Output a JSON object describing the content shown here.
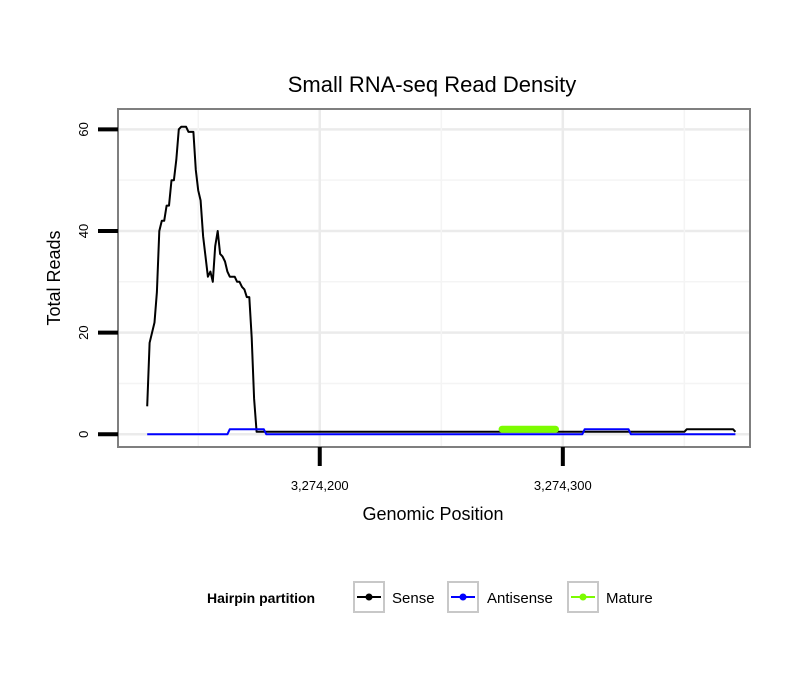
{
  "chart_data": {
    "type": "line",
    "title": "Small RNA-seq Read Density",
    "xlabel": "Genomic Position",
    "ylabel": "Total Reads",
    "xlim": [
      3274117,
      3274377
    ],
    "ylim": [
      -2.5,
      64
    ],
    "x_ticks": [
      {
        "value": 3274200,
        "label": "3,274,200"
      },
      {
        "value": 3274300,
        "label": "3,274,300"
      }
    ],
    "y_ticks": [
      {
        "value": 0,
        "label": "0"
      },
      {
        "value": 20,
        "label": "20"
      },
      {
        "value": 40,
        "label": "40"
      },
      {
        "value": 60,
        "label": "60"
      }
    ],
    "x_minor_gridlines": [
      3274150,
      3274250,
      3274350
    ],
    "y_minor_gridlines": [
      10,
      30,
      50
    ],
    "grid": true,
    "legend": {
      "title": "Hairpin partition",
      "position": "bottom",
      "entries": [
        {
          "label": "Sense",
          "color": "#000000"
        },
        {
          "label": "Antisense",
          "color": "#0000ff"
        },
        {
          "label": "Mature",
          "color": "#7cfc00"
        }
      ]
    },
    "series": [
      {
        "name": "Sense",
        "color": "#000000",
        "x": [
          3274129,
          3274130,
          3274132,
          3274133,
          3274134,
          3274135,
          3274136,
          3274137,
          3274138,
          3274139,
          3274140,
          3274141,
          3274142,
          3274143,
          3274144,
          3274145,
          3274146,
          3274147,
          3274148,
          3274149,
          3274150,
          3274151,
          3274152,
          3274153,
          3274154,
          3274155,
          3274156,
          3274157,
          3274158,
          3274159,
          3274160,
          3274161,
          3274162,
          3274163,
          3274164,
          3274165,
          3274166,
          3274167,
          3274168,
          3274169,
          3274170,
          3274171,
          3274172,
          3274173,
          3274174,
          3274175,
          3274176,
          3274177,
          3274330,
          3274331,
          3274350,
          3274351,
          3274370,
          3274371
        ],
        "values": [
          5.5,
          18,
          22,
          28,
          40,
          42,
          42,
          45,
          45,
          50,
          50,
          54,
          60,
          60.5,
          60.5,
          60.5,
          59.5,
          59.5,
          59.5,
          52,
          48,
          46,
          39,
          35,
          31,
          32,
          30,
          37,
          40,
          35.5,
          35,
          34,
          32,
          31,
          31,
          31,
          30,
          30,
          29,
          28.5,
          27,
          27,
          19,
          7,
          0.5,
          0.5,
          0.5,
          0.5,
          0.5,
          0.5,
          0.5,
          1,
          1,
          0.5
        ]
      },
      {
        "name": "Antisense",
        "color": "#0000ff",
        "x": [
          3274129,
          3274162,
          3274163,
          3274177,
          3274178,
          3274180,
          3274308,
          3274309,
          3274327,
          3274328,
          3274371
        ],
        "values": [
          0,
          0,
          1,
          1,
          0,
          0,
          0,
          1,
          1,
          0,
          0
        ]
      },
      {
        "name": "Mature",
        "color": "#7cfc00",
        "x": [
          3274275,
          3274297
        ],
        "values": [
          1,
          1
        ]
      }
    ]
  }
}
